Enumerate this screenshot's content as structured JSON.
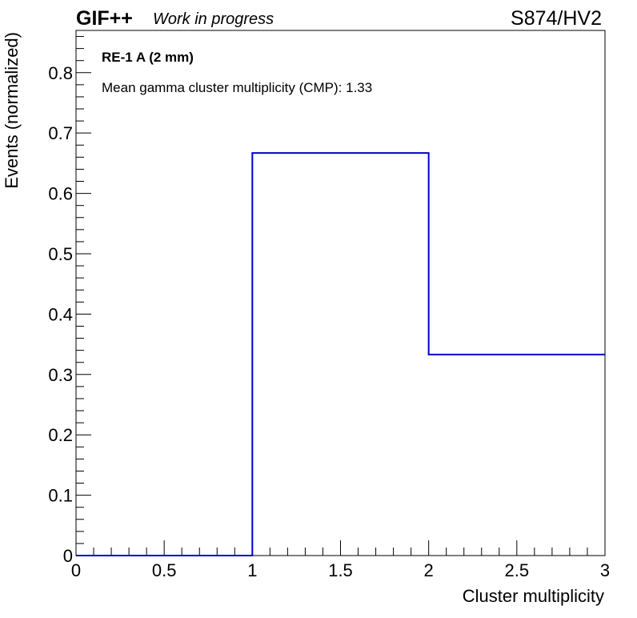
{
  "header": {
    "experiment": "GIF++",
    "status": "Work in progress",
    "run": "S874/HV2"
  },
  "annotations": {
    "detector": "RE-1 A (2 mm)",
    "cmp_text": "Mean gamma cluster multiplicity (CMP): 1.33"
  },
  "chart_data": {
    "type": "histogram",
    "title": "",
    "xlabel": "Cluster multiplicity",
    "ylabel": "Events (normalized)",
    "xlim": [
      0,
      3
    ],
    "ylim": [
      0,
      0.87
    ],
    "bins": [
      {
        "x_low": 0,
        "x_high": 1,
        "value": 0.0
      },
      {
        "x_low": 1,
        "x_high": 2,
        "value": 0.667
      },
      {
        "x_low": 2,
        "x_high": 3,
        "value": 0.333
      }
    ],
    "x_ticks": [
      "0",
      "0.5",
      "1",
      "1.5",
      "2",
      "2.5",
      "3"
    ],
    "y_ticks": [
      "0",
      "0.1",
      "0.2",
      "0.3",
      "0.4",
      "0.5",
      "0.6",
      "0.7",
      "0.8"
    ],
    "line_color": "#0000cc",
    "grid": false
  }
}
